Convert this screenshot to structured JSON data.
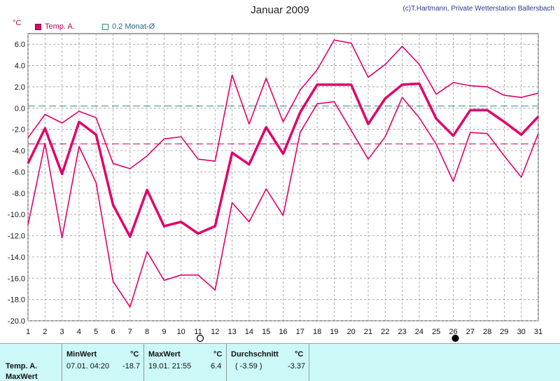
{
  "title": "Januar 2009",
  "credit": "(c)T.Hartmann, Private Wetterstation Ballersbach",
  "unit": "°C",
  "legend": {
    "temp": "Temp. A.",
    "avg": "0.2 Monat-Ø"
  },
  "colors": {
    "series": "#e0006a",
    "avg_line": "#2a8a8a",
    "mean_line": "#e0006a",
    "grid": "#999999"
  },
  "chart_data": {
    "type": "line",
    "x": [
      1,
      2,
      3,
      4,
      5,
      6,
      7,
      8,
      9,
      10,
      11,
      12,
      13,
      14,
      15,
      16,
      17,
      18,
      19,
      20,
      21,
      22,
      23,
      24,
      25,
      26,
      27,
      28,
      29,
      30,
      31
    ],
    "ylim": [
      -20,
      7
    ],
    "yticks": [
      6.0,
      4.0,
      2.0,
      0.0,
      -2.0,
      -4.0,
      -6.0,
      -8.0,
      -10.0,
      -12.0,
      -14.0,
      -16.0,
      -18.0,
      -20.0
    ],
    "series": [
      {
        "values": [
          -2.8,
          -0.6,
          -1.4,
          -0.3,
          -0.9,
          -5.2,
          -5.7,
          -4.5,
          -2.9,
          -2.7,
          -4.8,
          -5.0,
          3.1,
          -1.5,
          2.8,
          -1.3,
          1.7,
          3.6,
          6.4,
          6.1,
          2.9,
          4.1,
          5.8,
          4.1,
          1.3,
          2.4,
          2.1,
          2.0,
          1.2,
          1.0,
          1.4
        ]
      },
      {
        "values": [
          -5.2,
          -1.9,
          -6.2,
          -1.3,
          -2.5,
          -9.1,
          -12.1,
          -7.7,
          -11.1,
          -10.7,
          -11.8,
          -11.1,
          -4.2,
          -5.3,
          -1.8,
          -4.3,
          -0.4,
          2.2,
          2.2,
          2.2,
          -1.5,
          0.9,
          2.2,
          2.3,
          -1.0,
          -2.6,
          -0.2,
          -0.2,
          -1.3,
          -2.5,
          -0.8
        ]
      },
      {
        "values": [
          -11.0,
          -3.3,
          -12.2,
          -3.6,
          -7.0,
          -16.3,
          -18.7,
          -13.5,
          -16.2,
          -15.7,
          -15.7,
          -17.1,
          -8.9,
          -10.7,
          -7.6,
          -10.1,
          -2.3,
          0.4,
          0.6,
          -2.1,
          -4.8,
          -2.7,
          1.0,
          -0.9,
          -3.4,
          -6.9,
          -2.3,
          -2.4,
          -4.5,
          -6.5,
          -2.4
        ]
      }
    ],
    "avg_line": 0.2,
    "mean_line": -3.37,
    "moon": [
      {
        "day": 11,
        "phase": "full"
      },
      {
        "day": 26,
        "phase": "new"
      }
    ],
    "grid": true
  },
  "stats": {
    "row_label_1": "Temp. A.",
    "row_label_2": "MaxWert",
    "min_header": "MinWert",
    "min_unit": "°C",
    "min_time": "07.01.  04:20",
    "min_value": "-18.7",
    "max_header": "MaxWert",
    "max_unit": "°C",
    "max_time": "19.01.  21:55",
    "max_value": "6.4",
    "avg_header": "Durchschnitt",
    "avg_unit": "°C",
    "avg_paren": "( -3.59 )",
    "avg_value": "-3.37"
  }
}
